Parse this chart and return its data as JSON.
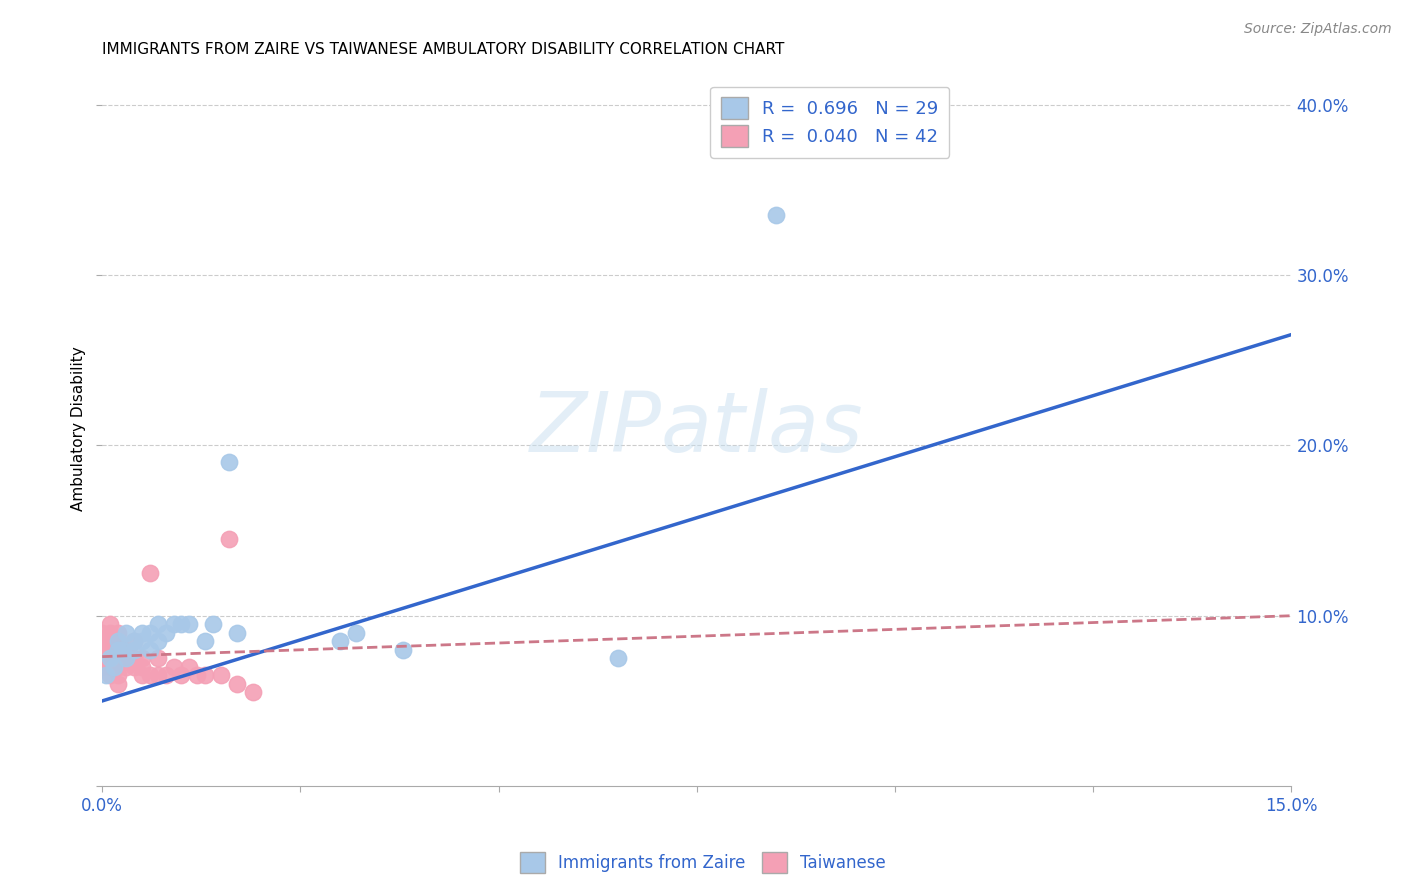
{
  "title": "IMMIGRANTS FROM ZAIRE VS TAIWANESE AMBULATORY DISABILITY CORRELATION CHART",
  "source": "Source: ZipAtlas.com",
  "ylabel": "Ambulatory Disability",
  "xlim": [
    0.0,
    0.15
  ],
  "ylim": [
    0.0,
    0.42
  ],
  "xtick_positions": [
    0.0,
    0.025,
    0.05,
    0.075,
    0.1,
    0.125,
    0.15
  ],
  "xtick_labels_shown": {
    "0.0": "0.0%",
    "0.15": "15.0%"
  },
  "yticks_right": [
    0.1,
    0.2,
    0.3,
    0.4
  ],
  "yticks_grid": [
    0.1,
    0.2,
    0.3,
    0.4
  ],
  "blue_R": 0.696,
  "blue_N": 29,
  "pink_R": 0.04,
  "pink_N": 42,
  "blue_color": "#A8C8E8",
  "pink_color": "#F4A0B5",
  "blue_line_color": "#3366CC",
  "pink_line_color": "#CC7788",
  "watermark_text": "ZIPatlas",
  "blue_scatter_x": [
    0.0005,
    0.001,
    0.0015,
    0.002,
    0.002,
    0.0025,
    0.003,
    0.003,
    0.004,
    0.004,
    0.005,
    0.005,
    0.006,
    0.006,
    0.007,
    0.007,
    0.008,
    0.009,
    0.01,
    0.011,
    0.013,
    0.014,
    0.016,
    0.017,
    0.03,
    0.032,
    0.038,
    0.065,
    0.085
  ],
  "blue_scatter_y": [
    0.065,
    0.075,
    0.07,
    0.085,
    0.08,
    0.08,
    0.075,
    0.09,
    0.08,
    0.085,
    0.085,
    0.09,
    0.08,
    0.09,
    0.085,
    0.095,
    0.09,
    0.095,
    0.095,
    0.095,
    0.085,
    0.095,
    0.19,
    0.09,
    0.085,
    0.09,
    0.08,
    0.075,
    0.335
  ],
  "pink_scatter_x": [
    0.0,
    0.0,
    0.0,
    0.0,
    0.0,
    0.001,
    0.001,
    0.001,
    0.001,
    0.001,
    0.001,
    0.001,
    0.002,
    0.002,
    0.002,
    0.002,
    0.002,
    0.002,
    0.002,
    0.003,
    0.003,
    0.003,
    0.004,
    0.004,
    0.004,
    0.005,
    0.005,
    0.005,
    0.006,
    0.006,
    0.007,
    0.007,
    0.008,
    0.009,
    0.01,
    0.011,
    0.012,
    0.013,
    0.015,
    0.016,
    0.017,
    0.019
  ],
  "pink_scatter_y": [
    0.07,
    0.075,
    0.08,
    0.085,
    0.09,
    0.065,
    0.07,
    0.075,
    0.08,
    0.085,
    0.09,
    0.095,
    0.065,
    0.07,
    0.075,
    0.08,
    0.085,
    0.09,
    0.06,
    0.07,
    0.075,
    0.08,
    0.07,
    0.075,
    0.085,
    0.065,
    0.07,
    0.075,
    0.065,
    0.125,
    0.065,
    0.075,
    0.065,
    0.07,
    0.065,
    0.07,
    0.065,
    0.065,
    0.065,
    0.145,
    0.06,
    0.055
  ],
  "blue_trend_x": [
    0.0,
    0.15
  ],
  "blue_trend_y": [
    0.05,
    0.265
  ],
  "pink_trend_x": [
    0.0,
    0.15
  ],
  "pink_trend_y": [
    0.076,
    0.1
  ],
  "legend_labels": [
    "Immigrants from Zaire",
    "Taiwanese"
  ],
  "background_color": "#FFFFFF",
  "grid_color": "#CCCCCC"
}
